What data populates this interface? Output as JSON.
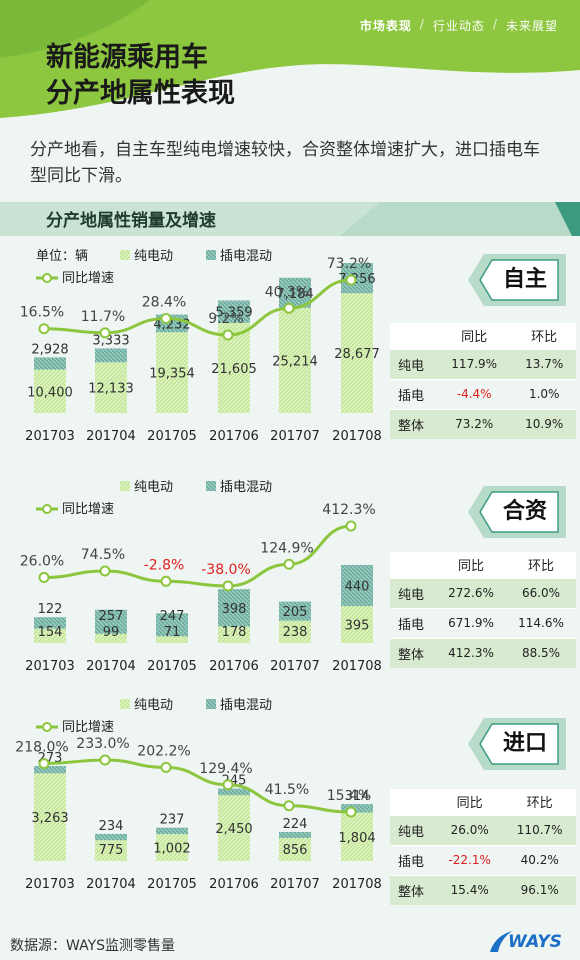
{
  "header": {
    "nav": [
      "市场表现",
      "行业动态",
      "未来展望"
    ],
    "separator": "/",
    "title_line1": "新能源乘用车",
    "title_line2": "分产地属性表现"
  },
  "intro": "分产地看，自主车型纯电增速较快，合资整体增速扩大，进口插电车型同比下滑。",
  "section_title": "分产地属性销量及增速",
  "colors": {
    "green_light": "#c6e89a",
    "teal": "#6fb0a2",
    "line": "#8cc63e",
    "neg": "#e02020",
    "accent": "#8dc63f"
  },
  "unit_label": "单位：辆",
  "legend": {
    "bev": "纯电动",
    "phev": "插电混动",
    "yoy": "同比增速"
  },
  "table_headers": [
    "同比",
    "环比"
  ],
  "row_labels": [
    "纯电",
    "插电",
    "整体"
  ],
  "chart_data": [
    {
      "type": "bar",
      "badge": "自主",
      "categories": [
        "201703",
        "201704",
        "201705",
        "201706",
        "201707",
        "201708"
      ],
      "series": [
        {
          "name": "纯电动",
          "values": [
            10400,
            12133,
            19354,
            21605,
            25214,
            28677
          ],
          "labels": [
            "10,400",
            "12,133",
            "19,354",
            "21,605",
            "25,214",
            "28,677"
          ]
        },
        {
          "name": "插电混动",
          "values": [
            2928,
            3333,
            4232,
            5359,
            7184,
            7256
          ],
          "labels": [
            "2,928",
            "3,333",
            "4,232",
            "5,359",
            "7,184",
            "7,256"
          ]
        },
        {
          "name": "同比增速",
          "values": [
            16.5,
            11.7,
            28.4,
            9.2,
            40.3,
            73.2
          ],
          "labels": [
            "16.5%",
            "11.7%",
            "28.4%",
            "9.2%",
            "40.3%",
            "73.2%"
          ]
        }
      ],
      "table": [
        [
          "117.9%",
          "13.7%"
        ],
        [
          "-4.4%",
          "1.0%"
        ],
        [
          "73.2%",
          "10.9%"
        ]
      ]
    },
    {
      "type": "bar",
      "badge": "合资",
      "categories": [
        "201703",
        "201704",
        "201705",
        "201706",
        "201707",
        "201708"
      ],
      "series": [
        {
          "name": "纯电动",
          "values": [
            154,
            99,
            71,
            178,
            238,
            395
          ],
          "labels": [
            "154",
            "99",
            "71",
            "178",
            "238",
            "395"
          ]
        },
        {
          "name": "插电混动",
          "values": [
            122,
            257,
            247,
            398,
            205,
            440
          ],
          "labels": [
            "122",
            "257",
            "247",
            "398",
            "205",
            "440"
          ]
        },
        {
          "name": "同比增速",
          "values": [
            26.0,
            74.5,
            -2.8,
            -38.0,
            124.9,
            412.3
          ],
          "labels": [
            "26.0%",
            "74.5%",
            "-2.8%",
            "-38.0%",
            "124.9%",
            "412.3%"
          ]
        }
      ],
      "table": [
        [
          "272.6%",
          "66.0%"
        ],
        [
          "671.9%",
          "114.6%"
        ],
        [
          "412.3%",
          "88.5%"
        ]
      ]
    },
    {
      "type": "bar",
      "badge": "进口",
      "categories": [
        "201703",
        "201704",
        "201705",
        "201706",
        "201707",
        "201708"
      ],
      "series": [
        {
          "name": "纯电动",
          "values": [
            3263,
            775,
            1002,
            2450,
            856,
            1804
          ],
          "labels": [
            "3,263",
            "775",
            "1,002",
            "2,450",
            "856",
            "1,804"
          ]
        },
        {
          "name": "插电混动",
          "values": [
            273,
            234,
            237,
            245,
            224,
            314
          ],
          "labels": [
            "273",
            "234",
            "237",
            "245",
            "224",
            "314"
          ]
        },
        {
          "name": "同比增速",
          "values": [
            218.0,
            233.0,
            202.2,
            129.4,
            41.5,
            15.4
          ],
          "labels": [
            "218.0%",
            "233.0%",
            "202.2%",
            "129.4%",
            "41.5%",
            "15.4%"
          ]
        }
      ],
      "table": [
        [
          "26.0%",
          "110.7%"
        ],
        [
          "-22.1%",
          "40.2%"
        ],
        [
          "15.4%",
          "96.1%"
        ]
      ]
    }
  ],
  "footer": {
    "source": "数据源：WAYS监测零售量",
    "logo": "WAYS"
  }
}
